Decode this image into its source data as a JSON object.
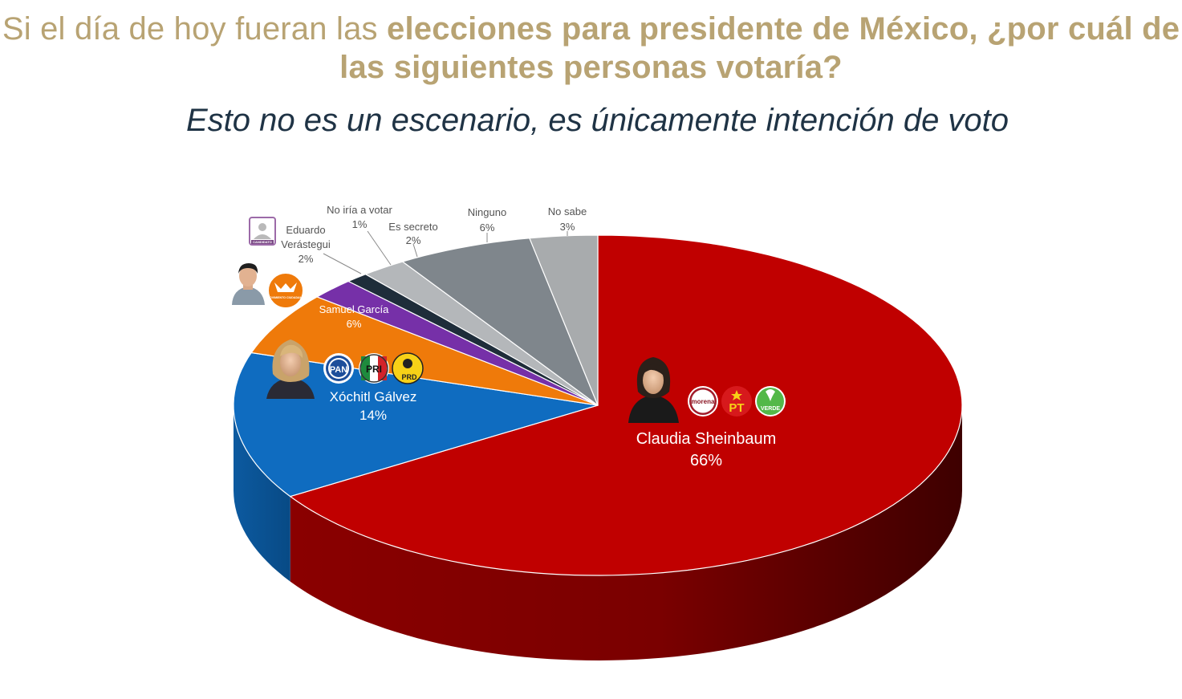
{
  "title": {
    "part1": "Si el día de hoy fueran las ",
    "part2": "elecciones para presidente de México, ¿por cuál de",
    "line2": "las siguientes personas votaría?"
  },
  "subtitle": "Esto no es un escenario, es únicamente intención de voto",
  "colors": {
    "title": "#b8a373",
    "subtitle": "#1f3345",
    "sheinbaum": "#c00000",
    "galvez": "#0f6cc0",
    "garcia": "#ef7a0a",
    "verastegui": "#7630a8",
    "no_votaria": "#1e2d3a",
    "secreto": "#b4b7ba",
    "ninguno": "#7f868c",
    "no_sabe": "#a8abad"
  },
  "chart_data": {
    "type": "pie",
    "title": "Si el día de hoy fueran las elecciones para presidente de México, ¿por cuál de las siguientes personas votaría?",
    "slices": [
      {
        "label": "Claudia Sheinbaum",
        "value": 66,
        "value_label": "66%",
        "parties": [
          "morena",
          "PT",
          "VERDE"
        ]
      },
      {
        "label": "Xóchitl Gálvez",
        "value": 14,
        "value_label": "14%",
        "parties": [
          "PAN",
          "PRI",
          "PRD"
        ]
      },
      {
        "label": "Samuel García",
        "value": 6,
        "value_label": "6%",
        "parties": [
          "MOVIMIENTO CIUDADANO"
        ]
      },
      {
        "label_line1": "Eduardo",
        "label_line2": "Verástegui",
        "label": "Eduardo Verástegui",
        "value": 2,
        "value_label": "2%",
        "parties": [
          "CANDIDATO"
        ]
      },
      {
        "label": "No iría a votar",
        "value": 1,
        "value_label": "1%"
      },
      {
        "label": "Es secreto",
        "value": 2,
        "value_label": "2%"
      },
      {
        "label": "Ninguno",
        "value": 6,
        "value_label": "6%"
      },
      {
        "label": "No sabe",
        "value": 3,
        "value_label": "3%"
      }
    ]
  },
  "logos": {
    "morena": "morena",
    "pt": "PT",
    "verde": "VERDE",
    "pan": "PAN",
    "pri": "PRI",
    "prd": "PRD",
    "mc": "MOVIMIENTO CIUDADANO",
    "candidato": "CANDIDATO"
  }
}
